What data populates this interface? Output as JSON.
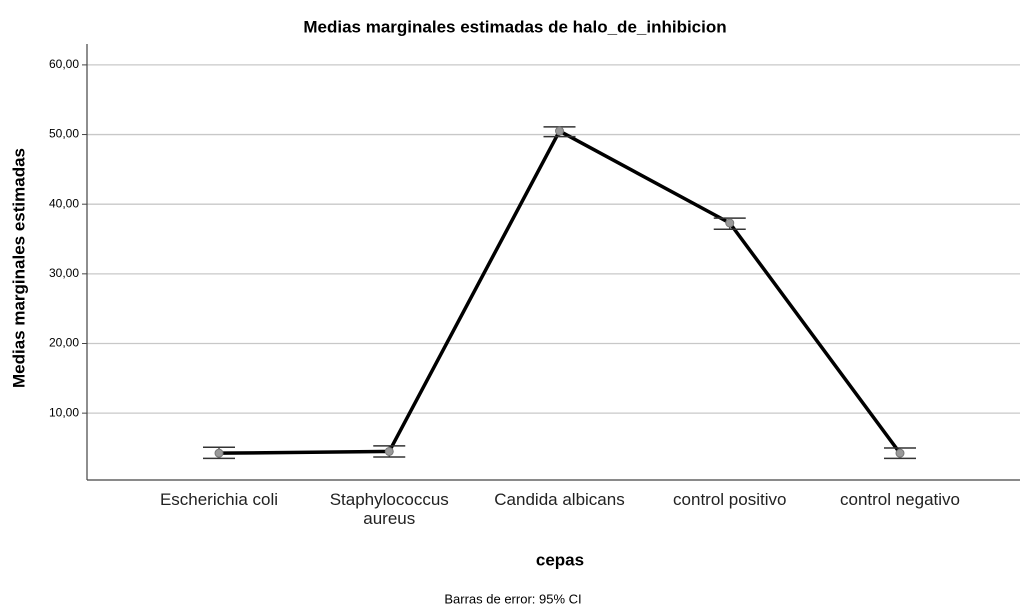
{
  "chart_data": {
    "type": "line",
    "title": "Medias marginales estimadas de halo_de_inhibicion",
    "x_label": "cepas",
    "y_label": "Medias marginales estimadas",
    "footnote": "Barras de error: 95% CI",
    "categories": [
      "Escherichia coli",
      "Staphylococcus aureus",
      "Candida albicans",
      "control positivo",
      "control negativo"
    ],
    "values": [
      4.25,
      4.5,
      50.5,
      37.3,
      4.25
    ],
    "ci_lower": [
      3.5,
      3.7,
      49.7,
      36.4,
      3.5
    ],
    "ci_upper": [
      5.1,
      5.3,
      51.1,
      38.0,
      5.0
    ],
    "color": "#000000",
    "ylim": [
      0.4,
      63
    ],
    "yticks": [
      {
        "value": 10,
        "label": "10,00"
      },
      {
        "value": 20,
        "label": "20,00"
      },
      {
        "value": 30,
        "label": "30,00"
      },
      {
        "value": 40,
        "label": "40,00"
      },
      {
        "value": 50,
        "label": "50,00"
      },
      {
        "value": 60,
        "label": "60,00"
      }
    ],
    "grid": true
  }
}
